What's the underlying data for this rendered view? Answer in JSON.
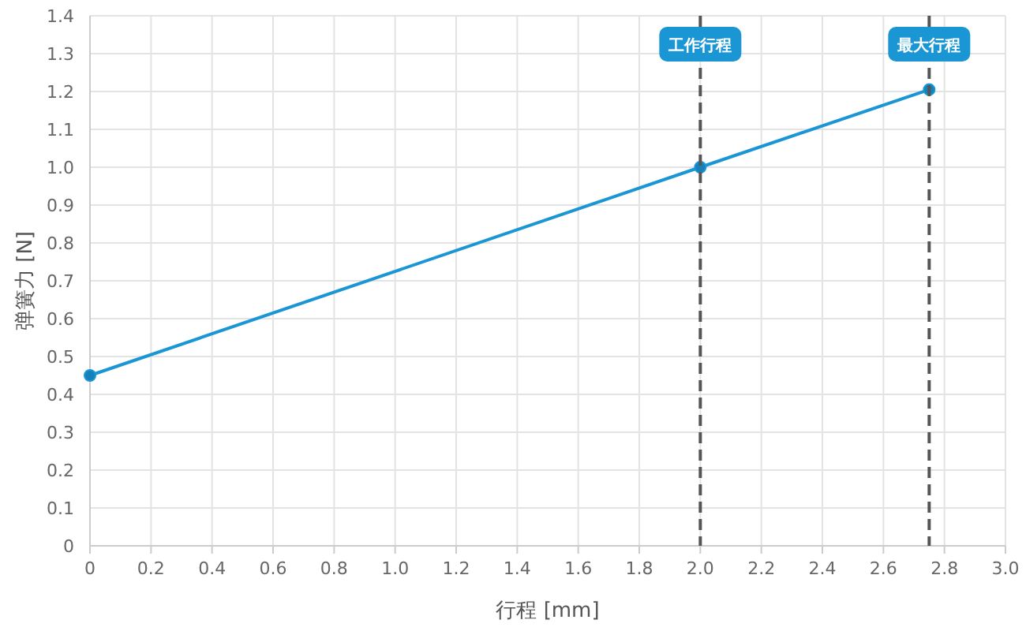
{
  "chart_data": {
    "type": "line",
    "xlabel": "行程 [mm]",
    "ylabel": "弹簧力 [N]",
    "x": [
      0,
      2,
      2.75
    ],
    "series": [
      {
        "color": "#1a96d4",
        "values": [
          0.45,
          1.0,
          1.205
        ]
      }
    ],
    "xlim": [
      0,
      3
    ],
    "xticks": [
      {
        "value": 0,
        "label": "0"
      },
      0.2,
      0.4,
      0.6,
      0.8,
      {
        "value": 1,
        "label": "1.0"
      },
      1.2,
      1.4,
      1.6,
      1.8,
      {
        "value": 2,
        "label": "2.0"
      },
      2.2,
      2.4,
      2.6,
      2.8,
      {
        "value": 3,
        "label": "3.0"
      }
    ],
    "ylim": [
      0,
      1.4
    ],
    "yticks": [
      0,
      0.1,
      0.2,
      0.3,
      0.4,
      0.5,
      0.6,
      0.7,
      0.8,
      0.9,
      {
        "value": 1,
        "label": "1.0"
      },
      1.1,
      1.2,
      1.3,
      1.4
    ],
    "grid": true,
    "marker": "circle",
    "ref_lines": [
      {
        "axis": "x",
        "value": 2,
        "label": "工作行程",
        "color": "#555555",
        "line_style": "dashed"
      },
      {
        "axis": "x",
        "value": 2.75,
        "label": "最大行程",
        "color": "#555555",
        "line_style": "dashed"
      }
    ]
  }
}
